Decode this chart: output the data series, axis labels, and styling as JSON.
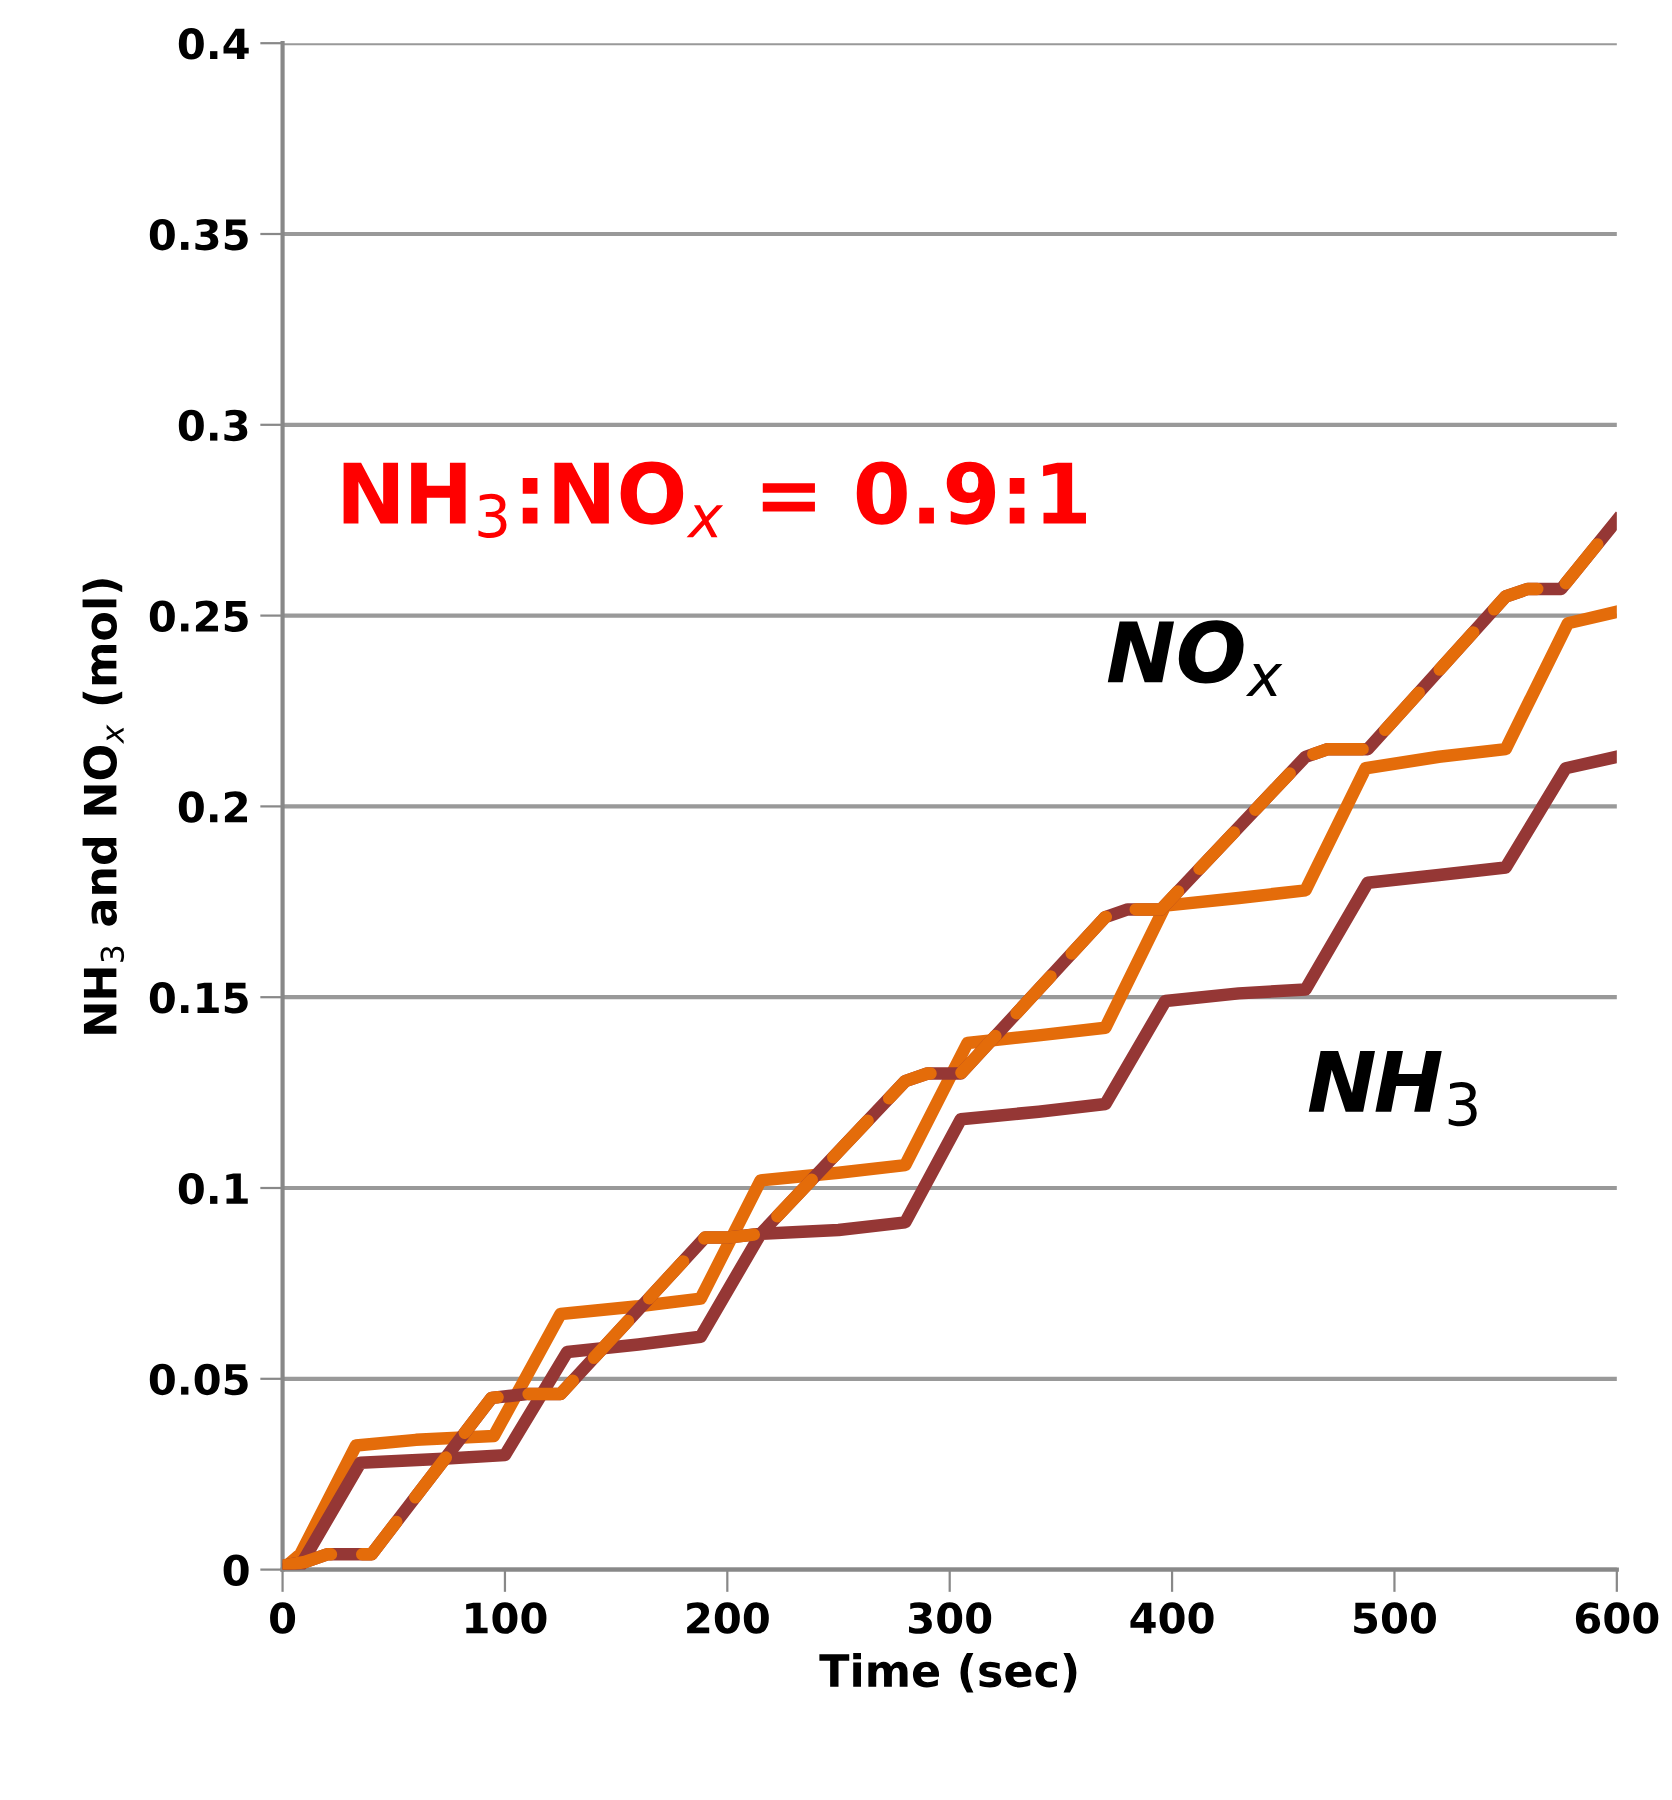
{
  "chart_data": {
    "type": "line",
    "xlabel": "Time (sec)",
    "ylabel": "NH$_{3}$ and NO$_{x}$ (mol)",
    "xlim": [
      0,
      600
    ],
    "ylim": [
      0,
      0.4
    ],
    "xticks": [
      0,
      100,
      200,
      300,
      400,
      500,
      600
    ],
    "yticks": [
      0,
      0.05,
      0.1,
      0.15,
      0.2,
      0.25,
      0.3,
      0.35,
      0.4
    ],
    "grid": "y",
    "legend": false,
    "marker": "none",
    "series": [
      {
        "color": "#e46c0a",
        "line_style": "solid",
        "x": [
          0,
          8,
          33,
          60,
          95,
          125,
          160,
          188,
          215,
          250,
          280,
          308,
          340,
          370,
          397,
          430,
          460,
          487,
          520,
          550,
          578,
          600
        ],
        "values": [
          0,
          0.004,
          0.0325,
          0.034,
          0.035,
          0.067,
          0.069,
          0.071,
          0.102,
          0.104,
          0.106,
          0.138,
          0.14,
          0.142,
          0.174,
          0.176,
          0.178,
          0.21,
          0.213,
          0.215,
          0.248,
          0.251
        ]
      },
      {
        "color": "#953735",
        "line_style": "solid",
        "x": [
          0,
          8,
          35,
          70,
          100,
          128,
          160,
          188,
          215,
          250,
          280,
          305,
          340,
          370,
          397,
          430,
          460,
          488,
          520,
          550,
          577,
          600
        ],
        "values": [
          0,
          0.001,
          0.028,
          0.029,
          0.03,
          0.057,
          0.059,
          0.061,
          0.088,
          0.089,
          0.091,
          0.118,
          0.12,
          0.122,
          0.149,
          0.151,
          0.152,
          0.18,
          0.182,
          0.184,
          0.21,
          0.213
        ]
      },
      {
        "color": "#953735",
        "line_style": "solid",
        "x": [
          0,
          10,
          20,
          40,
          94,
          110,
          125,
          190,
          200,
          215,
          280,
          290,
          305,
          370,
          380,
          395,
          460,
          470,
          488,
          550,
          560,
          575,
          600
        ],
        "values": [
          0.001,
          0.002,
          0.004,
          0.004,
          0.045,
          0.046,
          0.046,
          0.087,
          0.087,
          0.088,
          0.128,
          0.13,
          0.13,
          0.171,
          0.173,
          0.173,
          0.213,
          0.215,
          0.215,
          0.255,
          0.257,
          0.257,
          0.275
        ]
      },
      {
        "color": "#e46c0a",
        "line_style": "dashed",
        "x": [
          0,
          10,
          20,
          40,
          94,
          110,
          125,
          190,
          200,
          215,
          280,
          290,
          305,
          370,
          380,
          395,
          460,
          470,
          488,
          550,
          560,
          575,
          600
        ],
        "values": [
          0.001,
          0.002,
          0.004,
          0.004,
          0.045,
          0.046,
          0.046,
          0.087,
          0.087,
          0.088,
          0.128,
          0.13,
          0.13,
          0.171,
          0.173,
          0.173,
          0.213,
          0.215,
          0.215,
          0.255,
          0.257,
          0.257,
          0.275
        ]
      }
    ],
    "annotations": [
      "NH$_{3}$:NO$_{x}$ = 0.9:1",
      "NO$_{x}$",
      "NH$_{3}$"
    ]
  }
}
